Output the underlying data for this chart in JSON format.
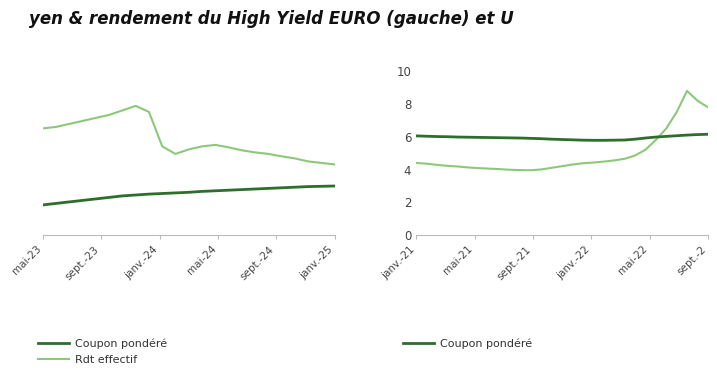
{
  "title": "yen & rendement du High Yield EURO (gauche) et U",
  "title_fontsize": 12,
  "bg_color": "#ffffff",
  "light_green": "#8dc87a",
  "dark_green": "#2d6e2d",
  "left_chart": {
    "xlabel_ticks": [
      "mai-23",
      "sept.-23",
      "janv.-24",
      "mai-24",
      "sept.-24",
      "janv.-25"
    ],
    "coupon_y": [
      4.5,
      4.55,
      4.6,
      4.65,
      4.7,
      4.75,
      4.8,
      4.83,
      4.86,
      4.88,
      4.9,
      4.92,
      4.95,
      4.97,
      4.99,
      5.01,
      5.03,
      5.05,
      5.07,
      5.09,
      5.11,
      5.12,
      5.13
    ],
    "rdt_y": [
      7.05,
      7.1,
      7.2,
      7.3,
      7.4,
      7.5,
      7.65,
      7.8,
      7.6,
      6.45,
      6.2,
      6.35,
      6.45,
      6.5,
      6.42,
      6.32,
      6.25,
      6.2,
      6.12,
      6.05,
      5.95,
      5.9,
      5.85
    ],
    "ylim": [
      3.5,
      9.5
    ]
  },
  "right_chart": {
    "xlabel_ticks": [
      "janv.-21",
      "mai-21",
      "sept.-21",
      "janv.-22",
      "mai-22",
      "sept.-2"
    ],
    "coupon_y": [
      6.05,
      6.03,
      6.01,
      6.0,
      5.98,
      5.97,
      5.96,
      5.95,
      5.94,
      5.93,
      5.92,
      5.9,
      5.88,
      5.85,
      5.83,
      5.81,
      5.79,
      5.78,
      5.78,
      5.79,
      5.8,
      5.85,
      5.92,
      5.98,
      6.02,
      6.06,
      6.1,
      6.13,
      6.15
    ],
    "rdt_y": [
      4.4,
      4.35,
      4.28,
      4.22,
      4.18,
      4.12,
      4.08,
      4.05,
      4.02,
      3.98,
      3.96,
      3.95,
      4.0,
      4.1,
      4.2,
      4.3,
      4.38,
      4.42,
      4.48,
      4.55,
      4.65,
      4.85,
      5.2,
      5.8,
      6.5,
      7.5,
      8.8,
      8.2,
      7.8
    ],
    "ylim": [
      0,
      11
    ],
    "yticks": [
      0,
      2,
      4,
      6,
      8,
      10
    ]
  },
  "legend_coupon_label": "Coupon pondéré",
  "legend_rdt_label": "Rdt effectif"
}
